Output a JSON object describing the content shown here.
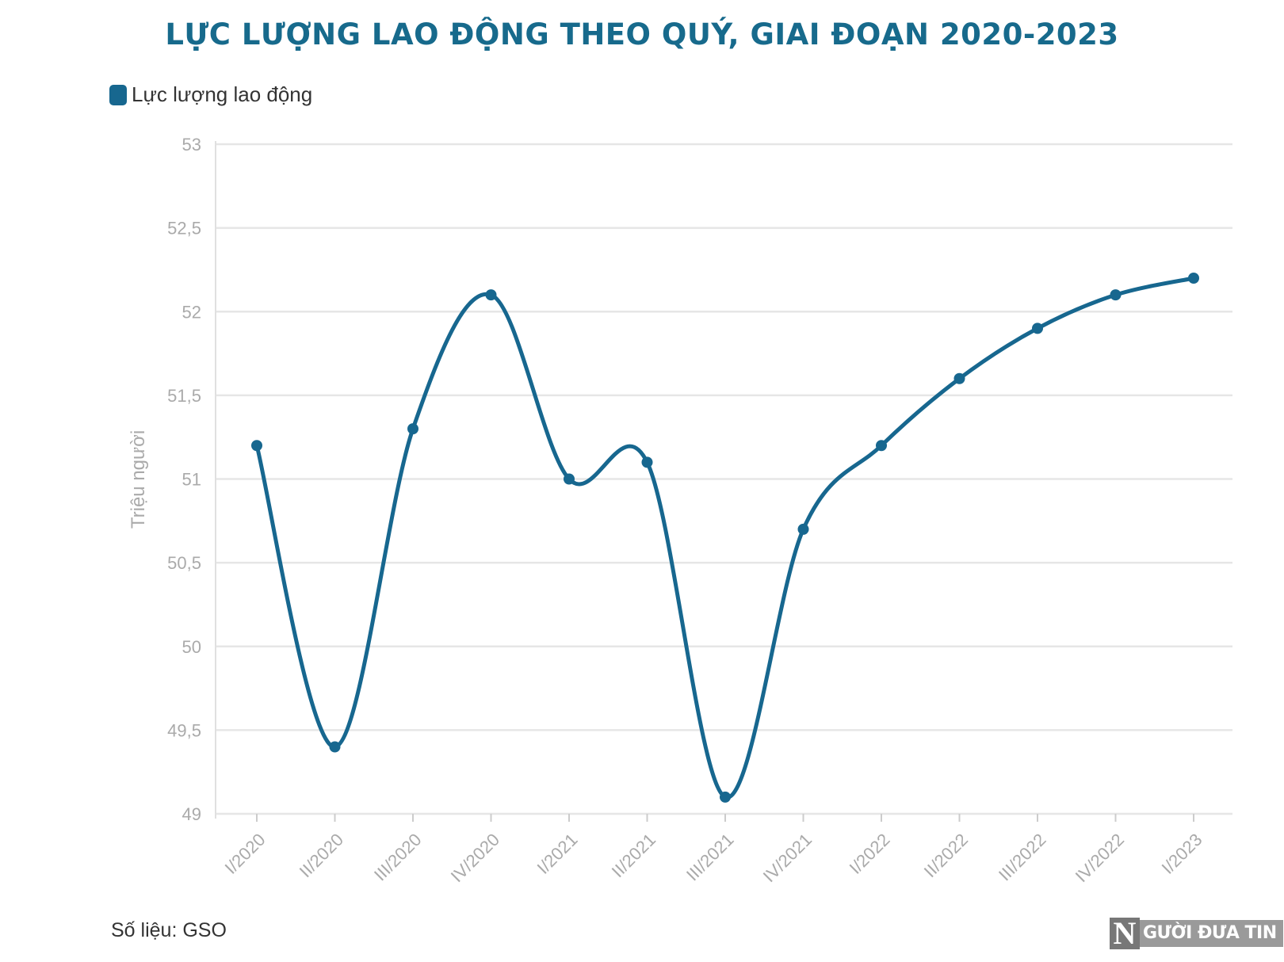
{
  "chart_data": {
    "type": "line",
    "title": "LỰC LƯỢNG LAO ĐỘNG THEO QUÝ, GIAI ĐOẠN 2020-2023",
    "xlabel": "",
    "ylabel": "Triệu người",
    "categories": [
      "I/2020",
      "II/2020",
      "III/2020",
      "IV/2020",
      "I/2021",
      "II/2021",
      "III/2021",
      "IV/2021",
      "I/2022",
      "II/2022",
      "III/2022",
      "IV/2022",
      "I/2023"
    ],
    "series": [
      {
        "name": "Lực lượng lao động",
        "color": "#17678f",
        "values": [
          51.2,
          49.4,
          51.3,
          52.1,
          51.0,
          51.1,
          49.1,
          50.7,
          51.2,
          51.6,
          51.9,
          52.1,
          52.2
        ]
      }
    ],
    "ylim": [
      49,
      53
    ],
    "yticks": [
      49,
      49.5,
      50,
      50.5,
      51,
      51.5,
      52,
      52.5,
      53
    ],
    "ytick_labels": [
      "49",
      "49,5",
      "50",
      "50,5",
      "51",
      "51,5",
      "52",
      "52,5",
      "53"
    ],
    "grid": true,
    "legend_position": "top-left",
    "smooth": true
  },
  "source": "Số liệu: GSO",
  "logo": {
    "mark": "N",
    "text": "GƯỜI ĐƯA TIN"
  },
  "colors": {
    "title": "#176a8c",
    "line": "#17678f",
    "grid": "#e6e6e6",
    "tick": "#aaaaaa"
  }
}
